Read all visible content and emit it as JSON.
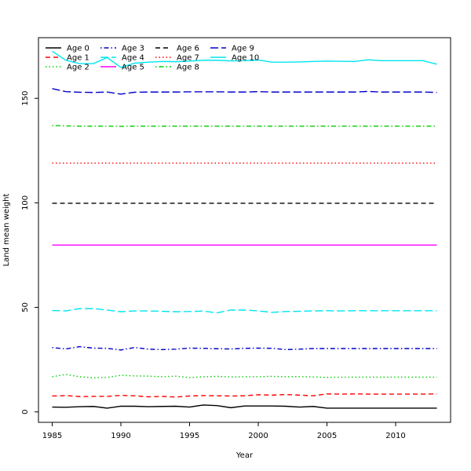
{
  "chart_data": {
    "type": "line",
    "title": "",
    "xlabel": "Year",
    "ylabel": "Land mean weight",
    "xlim": [
      1984,
      2014
    ],
    "ylim": [
      -5,
      179
    ],
    "xticks": [
      "1985",
      "1990",
      "1995",
      "2000",
      "2005",
      "2010"
    ],
    "yticks": [
      "0",
      "50",
      "100",
      "150"
    ],
    "grid": false,
    "legend_placement": "top-left",
    "x": [
      1985,
      1986,
      1987,
      1988,
      1989,
      1990,
      1991,
      1992,
      1993,
      1994,
      1995,
      1996,
      1997,
      1998,
      1999,
      2000,
      2001,
      2002,
      2003,
      2004,
      2005,
      2006,
      2007,
      2008,
      2009,
      2010,
      2011,
      2012,
      2013
    ],
    "series": [
      {
        "name": "Age 0",
        "color": "#000000",
        "dash": "solid",
        "values": [
          2.3,
          2.2,
          2.5,
          2.6,
          1.8,
          2.7,
          2.7,
          2.5,
          2.6,
          2.7,
          2.3,
          3.3,
          3.0,
          2.0,
          2.8,
          2.8,
          2.8,
          2.7,
          2.3,
          2.6,
          1.8,
          1.8,
          1.8,
          1.8,
          1.8,
          1.8,
          1.8,
          1.8,
          1.8
        ]
      },
      {
        "name": "Age 1",
        "color": "#ff0000",
        "dash": "dashed",
        "values": [
          7.6,
          7.8,
          7.3,
          7.4,
          7.4,
          7.9,
          7.7,
          7.2,
          7.4,
          7.1,
          7.6,
          7.8,
          7.7,
          7.6,
          7.7,
          8.2,
          8.0,
          8.3,
          8.0,
          7.7,
          8.6,
          8.5,
          8.6,
          8.5,
          8.5,
          8.5,
          8.5,
          8.5,
          8.6
        ]
      },
      {
        "name": "Age 2",
        "color": "#00cd00",
        "dash": "dotted",
        "values": [
          16.8,
          17.9,
          16.8,
          16.3,
          16.5,
          17.5,
          17.2,
          17.1,
          16.8,
          17.1,
          16.4,
          16.8,
          17.0,
          16.7,
          16.8,
          16.8,
          17.0,
          16.8,
          16.9,
          16.7,
          16.5,
          16.6,
          16.6,
          16.6,
          16.6,
          16.6,
          16.6,
          16.6,
          16.6
        ]
      },
      {
        "name": "Age 3",
        "color": "#0000cd",
        "dash": "dotdash",
        "values": [
          30.8,
          30.1,
          31.2,
          30.5,
          30.4,
          29.6,
          30.8,
          30.0,
          29.8,
          30.0,
          30.5,
          30.4,
          30.2,
          30.1,
          30.4,
          30.5,
          30.4,
          29.8,
          30.0,
          30.3,
          30.3,
          30.3,
          30.3,
          30.3,
          30.3,
          30.3,
          30.3,
          30.3,
          30.3
        ]
      },
      {
        "name": "Age 4",
        "color": "#00e5ee",
        "dash": "longdash",
        "values": [
          48.5,
          48.3,
          49.4,
          49.4,
          48.7,
          47.9,
          48.3,
          48.3,
          48.1,
          47.9,
          48.0,
          48.2,
          47.4,
          48.7,
          48.7,
          48.3,
          47.6,
          48.0,
          48.1,
          48.3,
          48.4,
          48.3,
          48.4,
          48.4,
          48.4,
          48.4,
          48.4,
          48.4,
          48.4
        ]
      },
      {
        "name": "Age 5",
        "color": "#ff00ff",
        "dash": "solid",
        "values": [
          79.8,
          79.8,
          79.8,
          79.8,
          79.8,
          79.8,
          79.8,
          79.8,
          79.8,
          79.8,
          79.8,
          79.8,
          79.8,
          79.8,
          79.8,
          79.8,
          79.8,
          79.8,
          79.8,
          79.8,
          79.8,
          79.8,
          79.8,
          79.8,
          79.8,
          79.8,
          79.8,
          79.8,
          79.8
        ]
      },
      {
        "name": "Age 6",
        "color": "#000000",
        "dash": "dashed",
        "values": [
          99.8,
          99.8,
          99.8,
          99.8,
          99.8,
          99.8,
          99.8,
          99.8,
          99.8,
          99.8,
          99.8,
          99.8,
          99.8,
          99.8,
          99.8,
          99.8,
          99.8,
          99.8,
          99.8,
          99.8,
          99.8,
          99.8,
          99.8,
          99.8,
          99.8,
          99.8,
          99.8,
          99.8,
          99.8
        ]
      },
      {
        "name": "Age 7",
        "color": "#ff0000",
        "dash": "dotted",
        "values": [
          119.0,
          119.0,
          119.0,
          119.0,
          119.0,
          119.0,
          119.0,
          119.0,
          119.0,
          119.0,
          119.0,
          119.0,
          119.0,
          119.0,
          119.0,
          119.0,
          119.0,
          119.0,
          119.0,
          119.0,
          119.0,
          119.0,
          119.0,
          119.0,
          119.0,
          119.0,
          119.0,
          119.0,
          119.0
        ]
      },
      {
        "name": "Age 8",
        "color": "#00cd00",
        "dash": "dotdash",
        "values": [
          137.0,
          136.8,
          136.7,
          136.7,
          136.7,
          136.6,
          136.7,
          136.7,
          136.7,
          136.7,
          136.7,
          136.7,
          136.7,
          136.7,
          136.7,
          136.7,
          136.7,
          136.7,
          136.7,
          136.7,
          136.7,
          136.7,
          136.7,
          136.7,
          136.7,
          136.7,
          136.7,
          136.7,
          136.7
        ]
      },
      {
        "name": "Age 9",
        "color": "#0000cd",
        "dash": "longdash",
        "values": [
          154.6,
          153.2,
          152.9,
          152.8,
          153.0,
          152.0,
          152.9,
          153.0,
          153.0,
          153.0,
          153.1,
          153.1,
          153.1,
          153.0,
          153.0,
          153.2,
          153.0,
          153.0,
          153.0,
          153.0,
          153.0,
          153.0,
          153.0,
          153.3,
          153.0,
          153.0,
          153.0,
          153.0,
          152.8
        ]
      },
      {
        "name": "Age 10",
        "color": "#00e5ee",
        "dash": "solid",
        "values": [
          172.5,
          168.2,
          166.6,
          166.6,
          169.5,
          164.8,
          166.8,
          167.3,
          167.6,
          167.5,
          167.8,
          168.2,
          168.2,
          167.9,
          168.0,
          168.3,
          167.3,
          167.3,
          167.4,
          167.6,
          167.8,
          167.7,
          167.6,
          168.4,
          168.0,
          168.0,
          168.0,
          168.0,
          166.3
        ]
      }
    ]
  }
}
